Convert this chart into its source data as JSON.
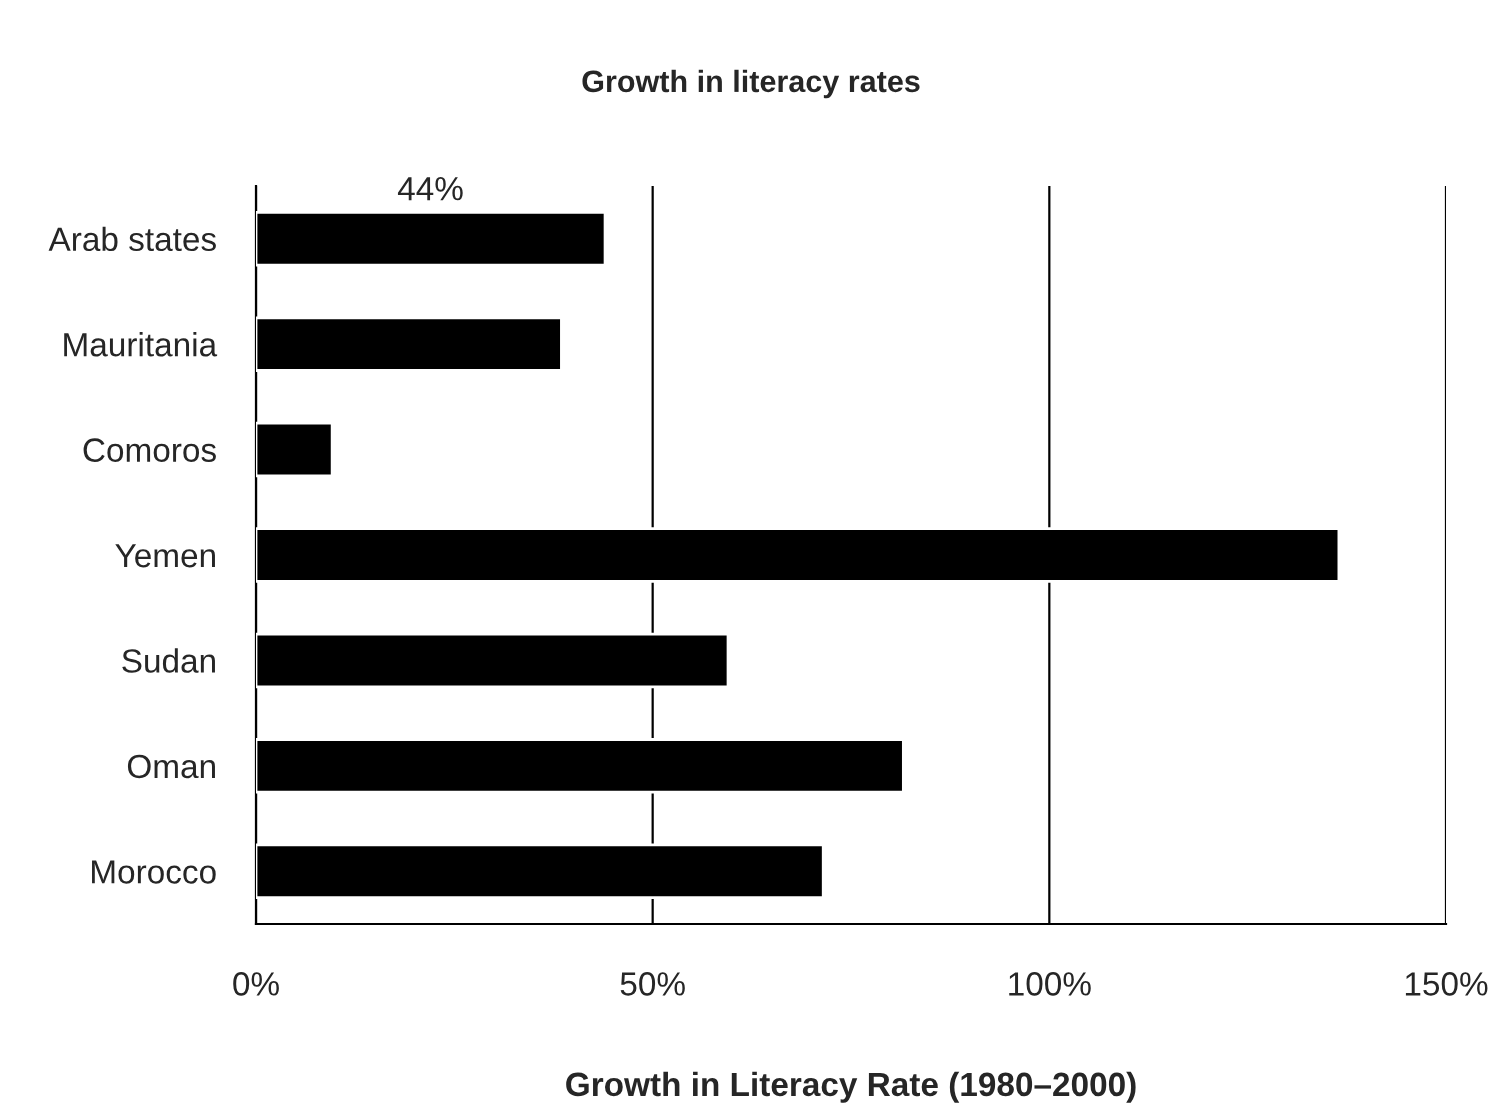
{
  "chart_data": {
    "type": "bar",
    "orientation": "horizontal",
    "title": "Growth in literacy rates",
    "xlabel": "Growth in Literacy Rate (1980–2000)",
    "categories": [
      "Arab states",
      "Mauritania",
      "Comoros",
      "Yemen",
      "Sudan",
      "Oman",
      "Morocco"
    ],
    "values": [
      44,
      38.5,
      9.6,
      136.5,
      59.5,
      81.6,
      71.5
    ],
    "value_labels": [
      "44%",
      null,
      null,
      null,
      null,
      null,
      null
    ],
    "color": "#000000",
    "xlim": [
      0,
      150
    ],
    "xticks": [
      {
        "value": 0,
        "label": "0%"
      },
      {
        "value": 50,
        "label": "50%"
      },
      {
        "value": 100,
        "label": "100%"
      },
      {
        "value": 150,
        "label": "150%"
      }
    ],
    "grid": "x",
    "legend": false
  }
}
